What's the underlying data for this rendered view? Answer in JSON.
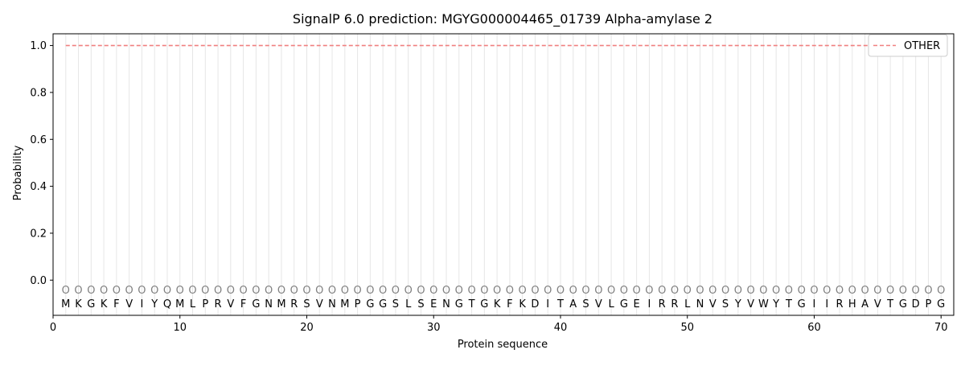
{
  "chart_data": {
    "type": "line",
    "title": "SignalP 6.0 prediction: MGYG000004465_01739 Alpha-amylase 2",
    "xlabel": "Protein sequence",
    "ylabel": "Probability",
    "xlim": [
      0,
      71
    ],
    "ylim": [
      -0.15,
      1.05
    ],
    "x_ticks": [
      "0",
      "10",
      "20",
      "30",
      "40",
      "50",
      "60",
      "70"
    ],
    "x_tick_values": [
      0,
      10,
      20,
      30,
      40,
      50,
      60,
      70
    ],
    "y_ticks": [
      "0.0",
      "0.2",
      "0.4",
      "0.6",
      "0.8",
      "1.0"
    ],
    "y_tick_values": [
      0.0,
      0.2,
      0.4,
      0.6,
      0.8,
      1.0
    ],
    "grid": "vertical lines at each residue position",
    "legend_position": "top-right",
    "sequence": [
      "M",
      "K",
      "G",
      "K",
      "F",
      "V",
      "I",
      "Y",
      "Q",
      "M",
      "L",
      "P",
      "R",
      "V",
      "F",
      "G",
      "N",
      "M",
      "R",
      "S",
      "V",
      "N",
      "M",
      "P",
      "G",
      "G",
      "S",
      "L",
      "S",
      "E",
      "N",
      "G",
      "T",
      "G",
      "K",
      "F",
      "K",
      "D",
      "I",
      "T",
      "A",
      "S",
      "V",
      "L",
      "G",
      "E",
      "I",
      "R",
      "R",
      "L",
      "N",
      "V",
      "S",
      "Y",
      "V",
      "W",
      "Y",
      "T",
      "G",
      "I",
      "I",
      "R",
      "H",
      "A",
      "V",
      "T",
      "G",
      "D",
      "P",
      "G"
    ],
    "predicted_labels": [
      "O",
      "O",
      "O",
      "O",
      "O",
      "O",
      "O",
      "O",
      "O",
      "O",
      "O",
      "O",
      "O",
      "O",
      "O",
      "O",
      "O",
      "O",
      "O",
      "O",
      "O",
      "O",
      "O",
      "O",
      "O",
      "O",
      "O",
      "O",
      "O",
      "O",
      "O",
      "O",
      "O",
      "O",
      "O",
      "O",
      "O",
      "O",
      "O",
      "O",
      "O",
      "O",
      "O",
      "O",
      "O",
      "O",
      "O",
      "O",
      "O",
      "O",
      "O",
      "O",
      "O",
      "O",
      "O",
      "O",
      "O",
      "O",
      "O",
      "O",
      "O",
      "O",
      "O",
      "O",
      "O",
      "O",
      "O",
      "O",
      "O",
      "O"
    ],
    "series": [
      {
        "name": "OTHER",
        "color": "#f08080",
        "style": "dashed",
        "x_start": 1,
        "x_end": 70,
        "value": 1.0
      }
    ]
  }
}
